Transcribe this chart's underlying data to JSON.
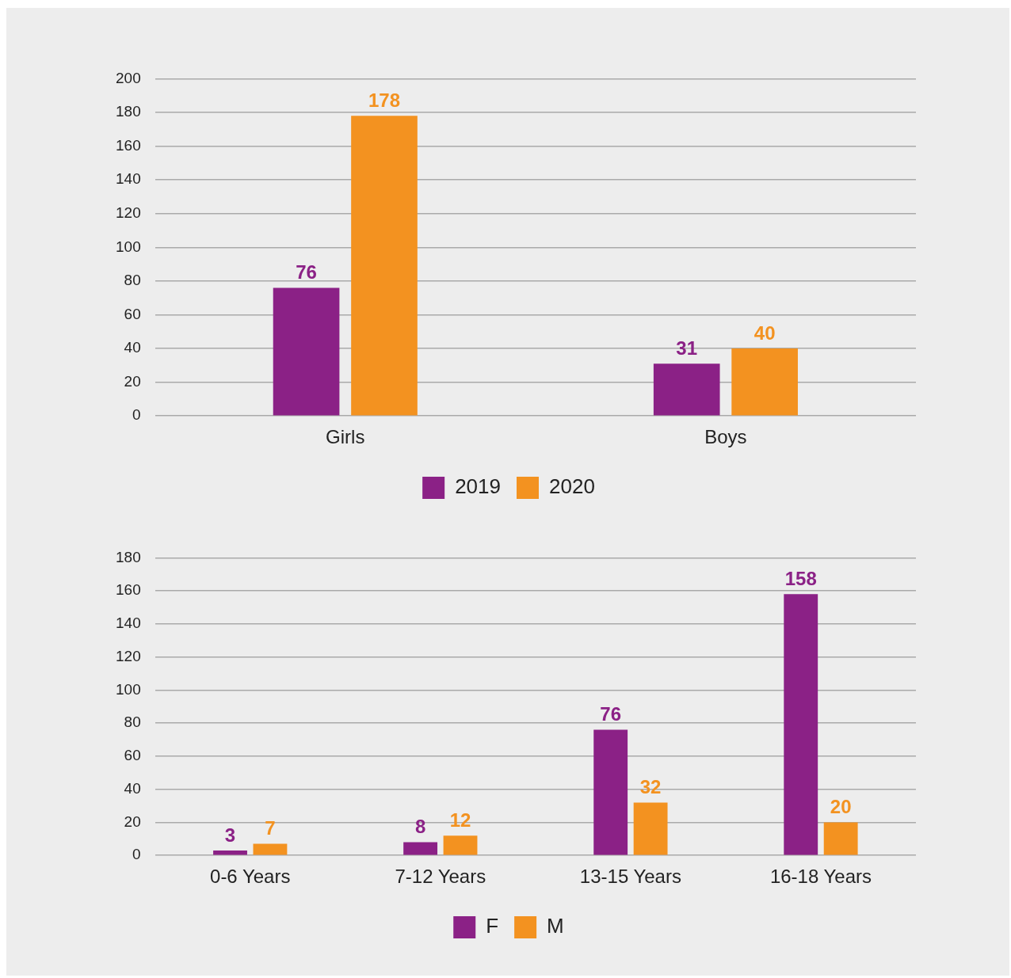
{
  "chart_data": [
    {
      "type": "bar",
      "categories": [
        "Girls",
        "Boys"
      ],
      "series": [
        {
          "name": "2019",
          "color": "#8b2186",
          "values": [
            76,
            31
          ]
        },
        {
          "name": "2020",
          "color": "#f39220",
          "values": [
            178,
            40
          ]
        }
      ],
      "ylim": [
        0,
        200
      ],
      "yticks": [
        0,
        20,
        40,
        60,
        80,
        100,
        120,
        140,
        160,
        180,
        200
      ],
      "grid": "y",
      "legend": "bottom",
      "data_labels": true
    },
    {
      "type": "bar",
      "categories": [
        "0-6 Years",
        "7-12 Years",
        "13-15 Years",
        "16-18 Years"
      ],
      "series": [
        {
          "name": "F",
          "color": "#8b2186",
          "values": [
            3,
            8,
            76,
            158
          ]
        },
        {
          "name": "M",
          "color": "#f39220",
          "values": [
            7,
            12,
            32,
            20
          ]
        }
      ],
      "ylim": [
        0,
        180
      ],
      "yticks": [
        0,
        20,
        40,
        60,
        80,
        100,
        120,
        140,
        160,
        180
      ],
      "grid": "y",
      "legend": "bottom",
      "data_labels": true
    }
  ]
}
